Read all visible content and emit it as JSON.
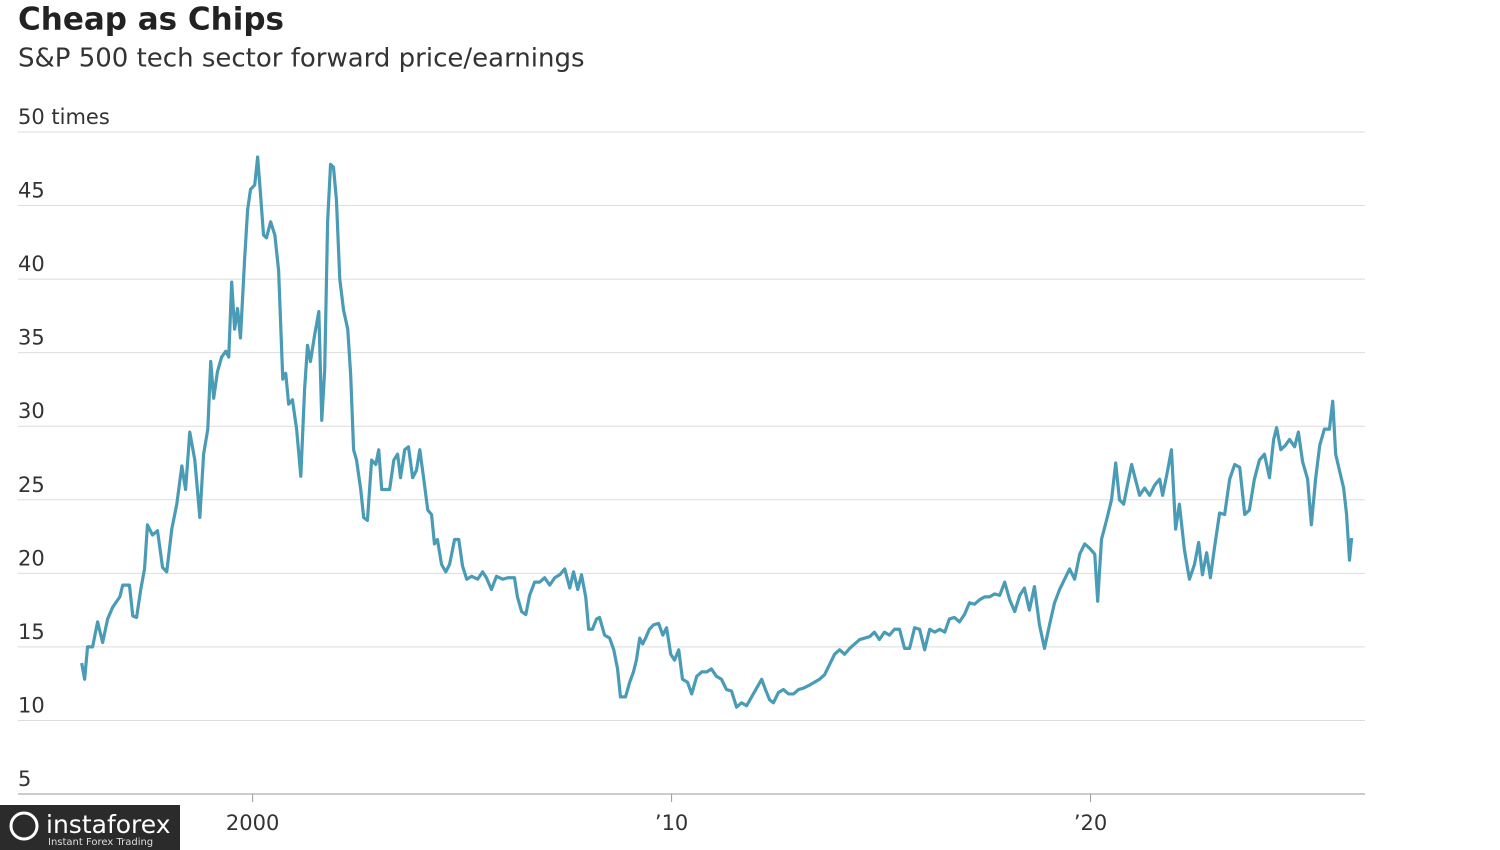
{
  "chart_data": {
    "type": "line",
    "title": "Cheap as Chips",
    "subtitle": "S&P 500 tech sector forward price/earnings",
    "color": "#4a9bb5",
    "grid": true,
    "xlim": [
      1994.4,
      2026.55
    ],
    "ylim": [
      5,
      50
    ],
    "xticks": [
      2000,
      {
        "value": 2010,
        "label": "’10"
      },
      {
        "value": 2020,
        "label": "’20"
      }
    ],
    "yticks": [
      5,
      10,
      15,
      20,
      25,
      30,
      35,
      40,
      45,
      {
        "value": 50,
        "label": "50 times"
      }
    ],
    "x": [
      1995.92,
      1995.99,
      1996.06,
      1996.18,
      1996.3,
      1996.42,
      1996.54,
      1996.66,
      1996.83,
      1996.9,
      1997.06,
      1997.14,
      1997.23,
      1997.33,
      1997.42,
      1997.49,
      1997.61,
      1997.73,
      1997.85,
      1997.95,
      1998.07,
      1998.19,
      1998.31,
      1998.4,
      1998.5,
      1998.62,
      1998.74,
      1998.83,
      1998.93,
      1999.0,
      1999.07,
      1999.16,
      1999.26,
      1999.36,
      1999.43,
      1999.5,
      1999.57,
      1999.64,
      1999.71,
      1999.81,
      1999.88,
      1999.95,
      2000.05,
      2000.12,
      2000.19,
      2000.26,
      2000.33,
      2000.43,
      2000.53,
      2000.62,
      2000.72,
      2000.79,
      2000.86,
      2000.95,
      2001.05,
      2001.15,
      2001.24,
      2001.31,
      2001.38,
      2001.48,
      2001.58,
      2001.65,
      2001.72,
      2001.79,
      2001.86,
      2001.93,
      2002.0,
      2002.08,
      2002.17,
      2002.27,
      2002.34,
      2002.41,
      2002.48,
      2002.58,
      2002.65,
      2002.74,
      2002.84,
      2002.94,
      2003.01,
      2003.08,
      2003.27,
      2003.37,
      2003.46,
      2003.53,
      2003.63,
      2003.72,
      2003.82,
      2003.91,
      2003.99,
      2004.08,
      2004.18,
      2004.27,
      2004.34,
      2004.41,
      2004.51,
      2004.61,
      2004.7,
      2004.82,
      2004.92,
      2005.01,
      2005.11,
      2005.23,
      2005.37,
      2005.49,
      2005.58,
      2005.7,
      2005.82,
      2005.97,
      2006.09,
      2006.25,
      2006.32,
      2006.42,
      2006.52,
      2006.61,
      2006.73,
      2006.85,
      2006.97,
      2007.09,
      2007.21,
      2007.33,
      2007.45,
      2007.57,
      2007.66,
      2007.76,
      2007.85,
      2007.95,
      2008.02,
      2008.11,
      2008.21,
      2008.28,
      2008.4,
      2008.52,
      2008.62,
      2008.71,
      2008.78,
      2008.9,
      2009.0,
      2009.09,
      2009.16,
      2009.24,
      2009.31,
      2009.38,
      2009.47,
      2009.57,
      2009.69,
      2009.79,
      2009.88,
      2009.98,
      2010.07,
      2010.17,
      2010.26,
      2010.38,
      2010.48,
      2010.6,
      2010.72,
      2010.84,
      2010.95,
      2011.07,
      2011.19,
      2011.31,
      2011.43,
      2011.55,
      2011.67,
      2011.79,
      2011.91,
      2012.03,
      2012.15,
      2012.24,
      2012.34,
      2012.43,
      2012.55,
      2012.67,
      2012.79,
      2012.91,
      2013.03,
      2013.15,
      2013.29,
      2013.41,
      2013.53,
      2013.65,
      2013.77,
      2013.89,
      2014.01,
      2014.13,
      2014.25,
      2014.37,
      2014.49,
      2014.61,
      2014.73,
      2014.84,
      2014.96,
      2015.08,
      2015.2,
      2015.32,
      2015.44,
      2015.56,
      2015.68,
      2015.8,
      2015.92,
      2016.04,
      2016.16,
      2016.28,
      2016.4,
      2016.52,
      2016.63,
      2016.75,
      2016.87,
      2016.99,
      2017.11,
      2017.23,
      2017.35,
      2017.47,
      2017.59,
      2017.71,
      2017.83,
      2017.95,
      2018.07,
      2018.19,
      2018.31,
      2018.42,
      2018.54,
      2018.66,
      2018.78,
      2018.9,
      2019.02,
      2019.14,
      2019.26,
      2019.38,
      2019.5,
      2019.62,
      2019.74,
      2019.86,
      2019.98,
      2020.1,
      2020.17,
      2020.26,
      2020.38,
      2020.5,
      2020.6,
      2020.69,
      2020.79,
      2020.88,
      2020.98,
      2021.07,
      2021.17,
      2021.29,
      2021.41,
      2021.53,
      2021.65,
      2021.72,
      2021.84,
      2021.93,
      2022.03,
      2022.12,
      2022.24,
      2022.36,
      2022.48,
      2022.58,
      2022.67,
      2022.77,
      2022.86,
      2022.96,
      2023.08,
      2023.2,
      2023.32,
      2023.44,
      2023.56,
      2023.68,
      2023.79,
      2023.91,
      2024.03,
      2024.15,
      2024.27,
      2024.37,
      2024.44,
      2024.54,
      2024.65,
      2024.75,
      2024.87,
      2024.96,
      2025.06,
      2025.18,
      2025.27,
      2025.37,
      2025.47,
      2025.58,
      2025.7,
      2025.78,
      2025.85,
      2025.94,
      2026.04,
      2026.11,
      2026.18,
      2026.23
    ],
    "values": [
      13.9,
      12.8,
      15.0,
      15.0,
      16.7,
      15.3,
      16.9,
      17.7,
      18.4,
      19.2,
      19.2,
      17.1,
      17.0,
      18.9,
      20.3,
      23.3,
      22.6,
      22.9,
      20.4,
      20.1,
      23.0,
      24.7,
      27.3,
      25.7,
      29.6,
      27.7,
      23.8,
      28.1,
      29.8,
      34.4,
      31.9,
      33.7,
      34.7,
      35.1,
      34.7,
      39.8,
      36.6,
      38.0,
      36.0,
      41.4,
      44.7,
      46.1,
      46.4,
      48.3,
      45.7,
      43.0,
      42.8,
      43.9,
      43.0,
      40.6,
      33.2,
      33.6,
      31.5,
      31.8,
      29.8,
      26.6,
      32.5,
      35.5,
      34.4,
      36.2,
      37.8,
      30.4,
      33.8,
      43.9,
      47.8,
      47.6,
      45.4,
      40.0,
      37.9,
      36.6,
      33.5,
      28.4,
      27.7,
      25.7,
      23.8,
      23.6,
      27.7,
      27.4,
      28.4,
      25.7,
      25.7,
      27.7,
      28.1,
      26.5,
      28.4,
      28.6,
      26.5,
      27.0,
      28.4,
      26.5,
      24.3,
      24.0,
      22.0,
      22.3,
      20.6,
      20.1,
      20.6,
      22.3,
      22.3,
      20.5,
      19.6,
      19.8,
      19.6,
      20.1,
      19.7,
      18.9,
      19.8,
      19.6,
      19.7,
      19.7,
      18.4,
      17.4,
      17.2,
      18.5,
      19.4,
      19.4,
      19.7,
      19.2,
      19.7,
      19.9,
      20.3,
      19.0,
      20.1,
      18.9,
      19.9,
      18.4,
      16.2,
      16.2,
      16.9,
      17.0,
      15.8,
      15.6,
      14.8,
      13.5,
      11.6,
      11.6,
      12.6,
      13.3,
      14.1,
      15.6,
      15.2,
      15.6,
      16.2,
      16.5,
      16.6,
      15.8,
      16.3,
      14.5,
      14.1,
      14.8,
      12.8,
      12.6,
      11.8,
      13.0,
      13.3,
      13.3,
      13.5,
      13.0,
      12.8,
      12.1,
      12.0,
      10.9,
      11.2,
      11.0,
      11.6,
      12.2,
      12.8,
      12.1,
      11.4,
      11.2,
      11.9,
      12.1,
      11.8,
      11.8,
      12.1,
      12.2,
      12.4,
      12.6,
      12.8,
      13.1,
      13.8,
      14.5,
      14.8,
      14.5,
      14.9,
      15.2,
      15.5,
      15.6,
      15.7,
      16.0,
      15.5,
      16.0,
      15.8,
      16.2,
      16.2,
      14.9,
      14.9,
      16.3,
      16.2,
      14.8,
      16.2,
      16.0,
      16.2,
      16.0,
      16.9,
      17.0,
      16.7,
      17.2,
      18.0,
      17.9,
      18.2,
      18.4,
      18.4,
      18.6,
      18.5,
      19.4,
      18.2,
      17.4,
      18.5,
      19.0,
      17.5,
      19.1,
      16.5,
      14.9,
      16.5,
      18.0,
      18.9,
      19.6,
      20.3,
      19.6,
      21.3,
      22.0,
      21.7,
      21.3,
      18.1,
      22.3,
      23.6,
      25.0,
      27.5,
      25.0,
      24.7,
      26.0,
      27.4,
      26.4,
      25.3,
      25.8,
      25.3,
      26.0,
      26.4,
      25.3,
      27.0,
      28.4,
      23.0,
      24.7,
      21.6,
      19.6,
      20.6,
      22.1,
      19.9,
      21.4,
      19.7,
      21.8,
      24.1,
      24.0,
      26.4,
      27.4,
      27.2,
      24.0,
      24.3,
      26.4,
      27.7,
      28.1,
      26.5,
      29.1,
      29.9,
      28.4,
      28.7,
      29.1,
      28.6,
      29.6,
      27.6,
      26.4,
      23.3,
      26.4,
      28.7,
      29.8,
      29.8,
      31.7,
      28.1,
      27.0,
      25.8,
      24.0,
      20.9,
      22.4
    ]
  },
  "watermark": {
    "name": "instaforex",
    "tagline": "Instant Forex Trading"
  }
}
